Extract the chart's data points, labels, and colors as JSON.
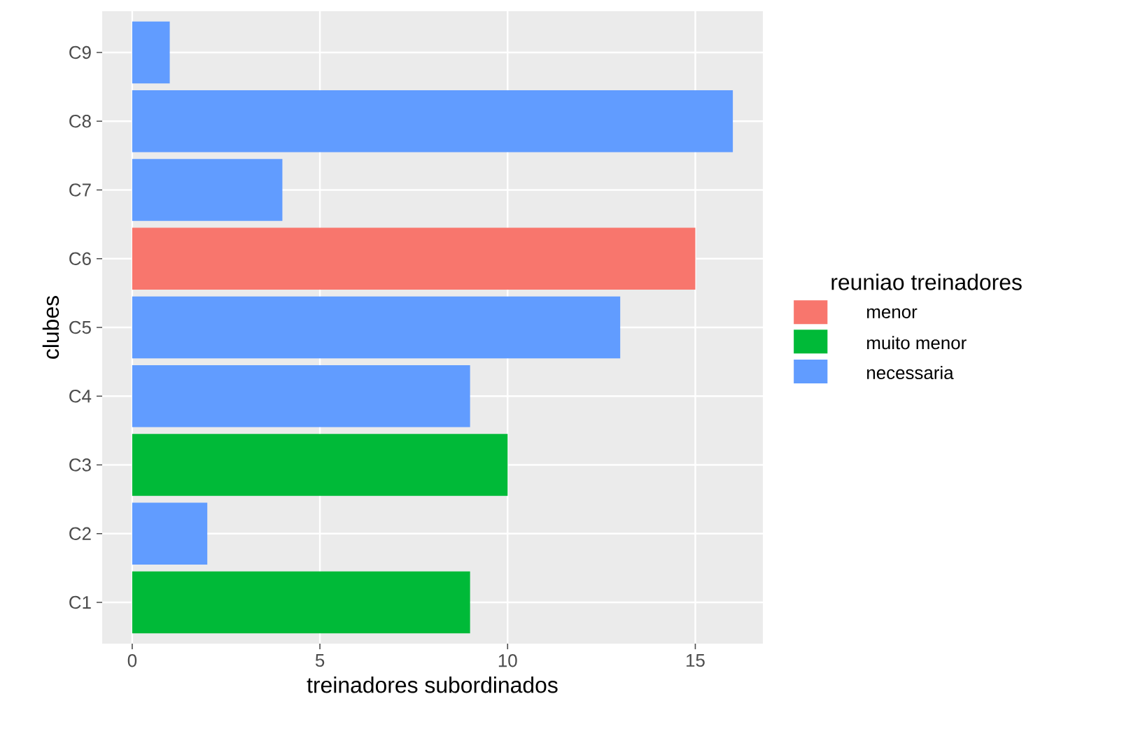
{
  "chart_data": {
    "type": "bar",
    "orientation": "horizontal",
    "xlabel": "treinadores subordinados",
    "ylabel": "clubes",
    "legend_title": "reuniao treinadores",
    "categories": [
      "C9",
      "C8",
      "C7",
      "C6",
      "C5",
      "C4",
      "C3",
      "C2",
      "C1"
    ],
    "series": [
      {
        "name": "menor",
        "color": "#f8766d",
        "values": [
          null,
          null,
          null,
          15,
          null,
          null,
          null,
          null,
          null
        ]
      },
      {
        "name": "muito menor",
        "color": "#00ba38",
        "values": [
          null,
          null,
          null,
          null,
          null,
          null,
          10,
          null,
          9
        ]
      },
      {
        "name": "necessaria",
        "color": "#619cff",
        "values": [
          1,
          16,
          4,
          null,
          13,
          9,
          null,
          2,
          null
        ]
      }
    ],
    "xlim": [
      -0.8,
      16.8
    ],
    "xticks": [
      0,
      5,
      10,
      15
    ],
    "grid": true,
    "legend": "right"
  }
}
